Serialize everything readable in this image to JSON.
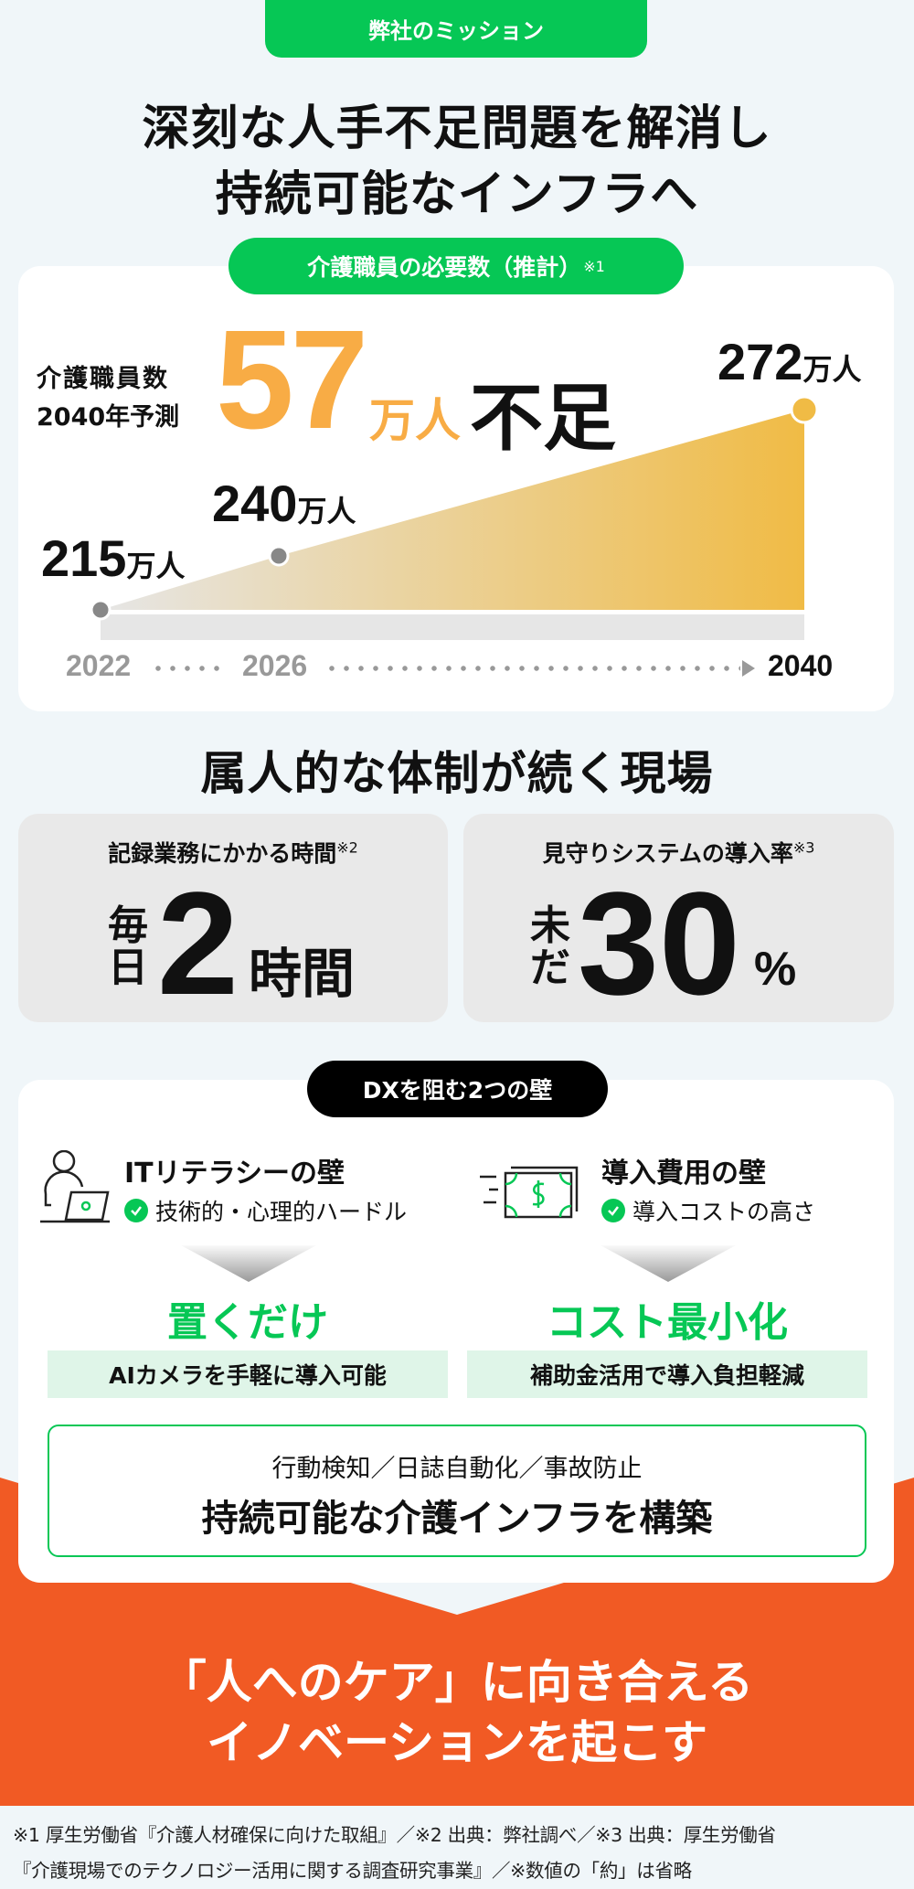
{
  "header": {
    "tab": "弊社のミッション",
    "title_line1": "深刻な人手不足問題を解消し",
    "title_line2": "持続可能なインフラへ"
  },
  "demand": {
    "pill": "介護職員の必要数（推計）",
    "pill_note": "※1",
    "forecast_label1": "介護職員数",
    "forecast_label2": "2040年予測",
    "shortage_number": "57",
    "shortage_unit": "万人",
    "shortage_word": "不足",
    "unit": "万人",
    "points": [
      {
        "year": "2022",
        "value": "215"
      },
      {
        "year": "2026",
        "value": "240"
      },
      {
        "year": "2040",
        "value": "272"
      }
    ],
    "colors": {
      "start": "#e6e6e6",
      "end": "#f0bb45",
      "accent": "#f8ac45"
    }
  },
  "chart_data": {
    "type": "area",
    "x": [
      "2022",
      "2026",
      "2040"
    ],
    "values": [
      215,
      240,
      272
    ],
    "unit": "万人"
  },
  "situation": {
    "heading": "属人的な体制が続く現場",
    "cards": [
      {
        "label": "記録業務にかかる時間",
        "note": "※2",
        "prefix1": "毎",
        "prefix2": "日",
        "value": "2",
        "suffix": "時間"
      },
      {
        "label": "見守りシステムの導入率",
        "note": "※3",
        "prefix1": "未",
        "prefix2": "だ",
        "value": "30",
        "suffix": "%"
      }
    ]
  },
  "barriers": {
    "pill": "DXを阻む2つの壁",
    "items": [
      {
        "icon": "person-laptop-icon",
        "title": "ITリテラシーの壁",
        "detail": "技術的・心理的ハードル",
        "solution": "置くだけ",
        "solution_detail": "AIカメラを手軽に導入可能"
      },
      {
        "icon": "money-bill-icon",
        "title": "導入費用の壁",
        "detail": "導入コストの高さ",
        "solution": "コスト最小化",
        "solution_detail": "補助金活用で導入負担軽減"
      }
    ],
    "features": "行動検知／日誌自動化／事故防止",
    "conclusion": "持続可能な介護インフラを構築"
  },
  "vision": {
    "line1": "「人へのケア」に向き合える",
    "line2": "イノベーションを起こす",
    "color": "#f15a24"
  },
  "footnotes": {
    "line1": "※1 厚生労働省『介護人材確保に向けた取組』／※2 出典：弊社調べ／※3 出典：厚生労働省",
    "line2": "『介護現場でのテクノロジー活用に関する調査研究事業』／※数値の「約」は省略"
  }
}
